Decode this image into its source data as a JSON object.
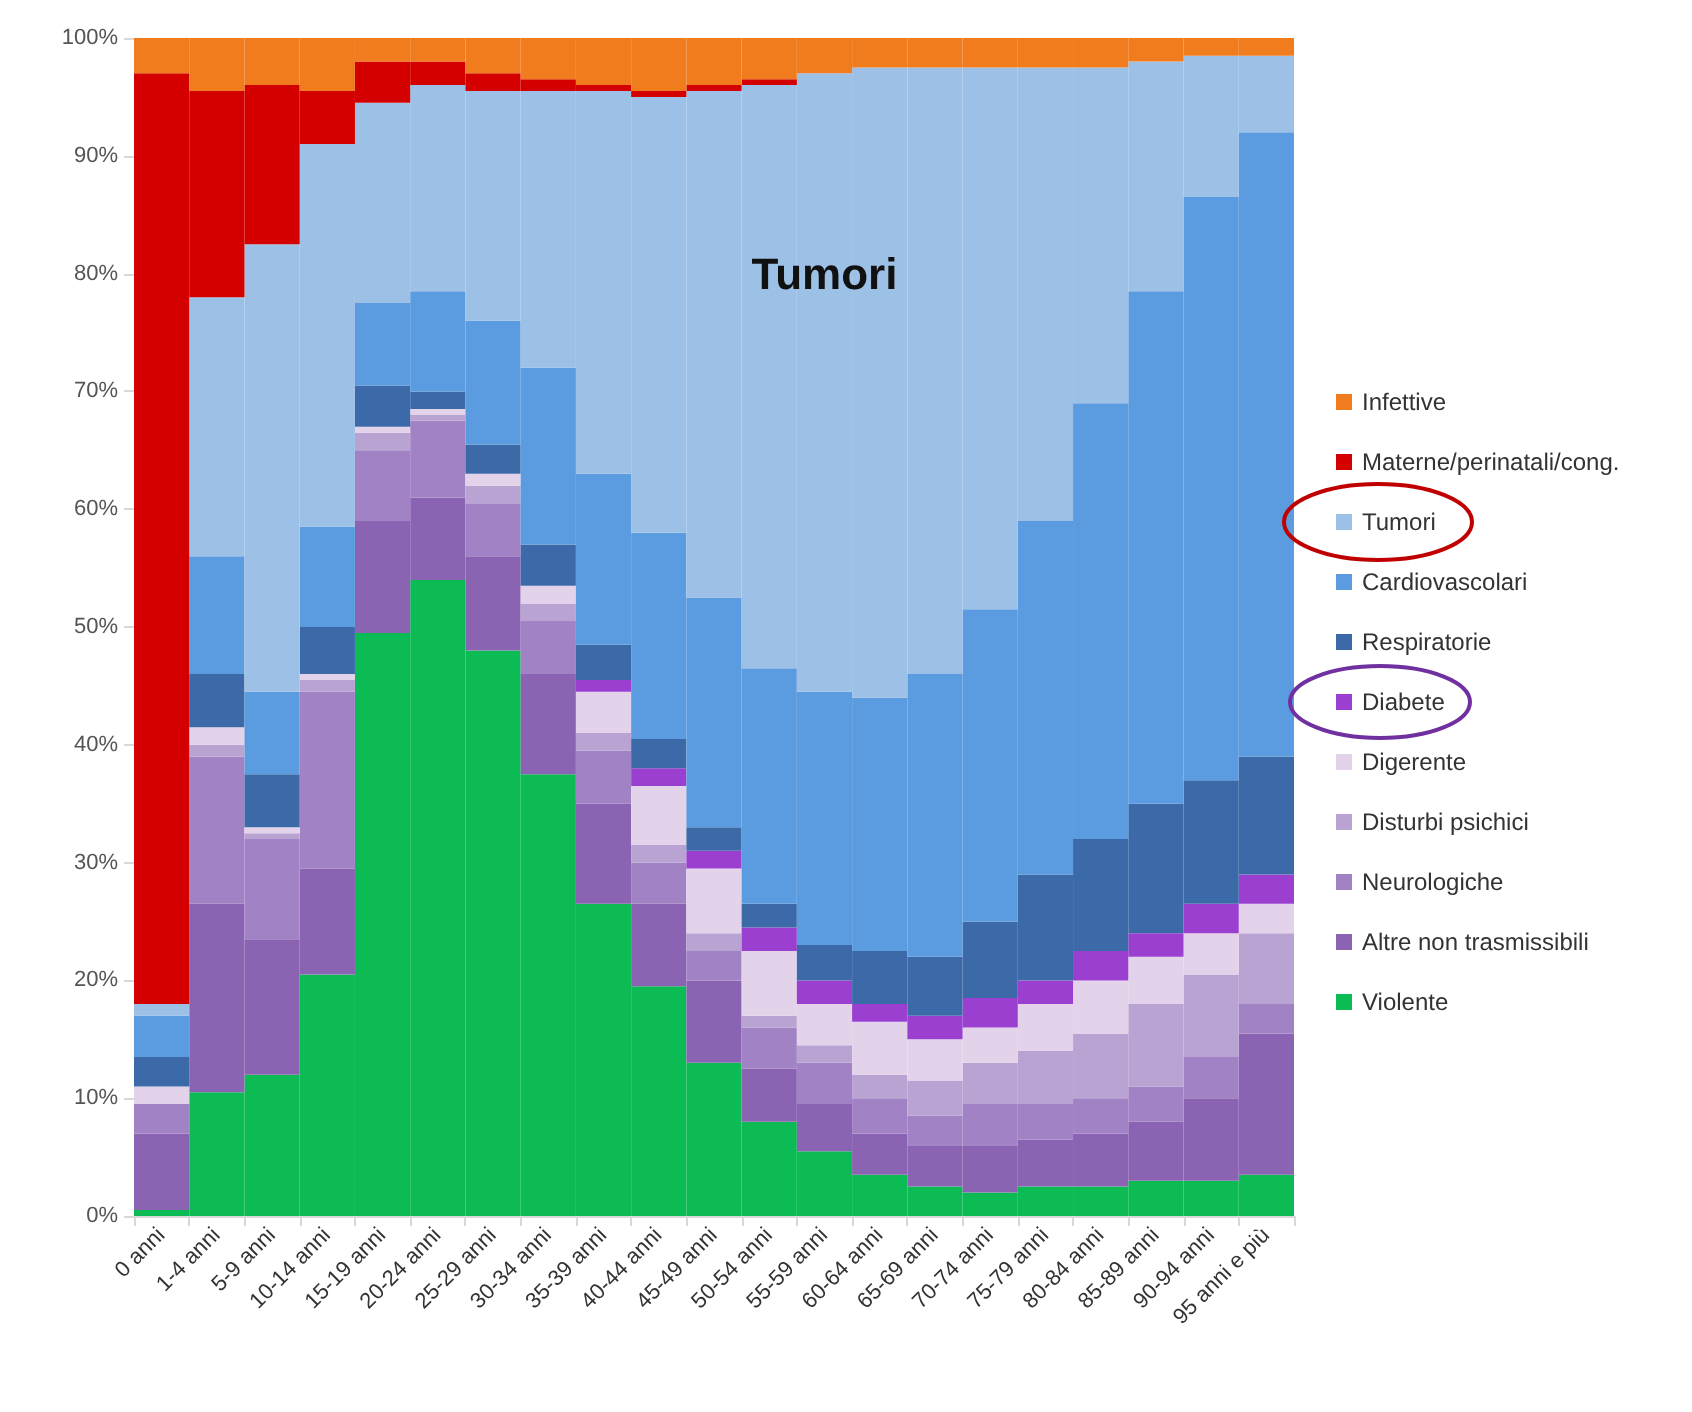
{
  "chart_data": {
    "type": "bar",
    "stacked": true,
    "legend": "right",
    "grid": false,
    "categories": [
      "0 anni",
      "1-4 anni",
      "5-9 anni",
      "10-14 anni",
      "15-19 anni",
      "20-24 anni",
      "25-29 anni",
      "30-34 anni",
      "35-39 anni",
      "40-44 anni",
      "45-49 anni",
      "50-54 anni",
      "55-59 anni",
      "60-64 anni",
      "65-69 anni",
      "70-74 anni",
      "75-79 anni",
      "80-84 anni",
      "85-89 anni",
      "90-94 anni",
      "95 anni e più"
    ],
    "ylim": [
      0,
      100
    ],
    "yticks": [
      {
        "value": 0,
        "label": "0%"
      },
      {
        "value": 10,
        "label": "10%"
      },
      {
        "value": 20,
        "label": "20%"
      },
      {
        "value": 30,
        "label": "30%"
      },
      {
        "value": 40,
        "label": "40%"
      },
      {
        "value": 50,
        "label": "50%"
      },
      {
        "value": 60,
        "label": "60%"
      },
      {
        "value": 70,
        "label": "70%"
      },
      {
        "value": 80,
        "label": "80%"
      },
      {
        "value": 90,
        "label": "90%"
      },
      {
        "value": 100,
        "label": "100%"
      }
    ],
    "annotations": [
      {
        "text": "Tumori",
        "x": "55-59 anni",
        "y": 80
      }
    ],
    "series": [
      {
        "name": "Violente",
        "color": "#0dbb55",
        "values": [
          0.5,
          10.5,
          12,
          20.5,
          49.5,
          54,
          48,
          37.5,
          26.5,
          19.5,
          13,
          8,
          5.5,
          3.5,
          2.5,
          2,
          2.5,
          2.5,
          3,
          3,
          3.5
        ]
      },
      {
        "name": "Altre non trasmissibili",
        "color": "#8a63b3",
        "values": [
          6.5,
          16,
          11.5,
          9,
          9.5,
          7,
          8,
          8.5,
          8.5,
          7,
          7,
          4.5,
          4,
          3.5,
          3.5,
          4,
          4,
          4.5,
          5,
          7,
          12
        ]
      },
      {
        "name": "Neurologiche",
        "color": "#a182c4",
        "values": [
          2.5,
          12.5,
          8.5,
          15,
          6,
          6.5,
          4.5,
          4.5,
          4.5,
          3.5,
          2.5,
          3.5,
          3.5,
          3,
          2.5,
          3.5,
          3,
          3,
          3,
          3.5,
          2.5
        ]
      },
      {
        "name": "Disturbi psichici",
        "color": "#b9a3d3",
        "values": [
          0,
          1,
          0.5,
          1,
          1.5,
          0.5,
          1.5,
          1.5,
          1.5,
          1.5,
          1.5,
          1,
          1.5,
          2,
          3,
          3.5,
          4.5,
          5.5,
          7,
          7,
          6
        ]
      },
      {
        "name": "Digerente",
        "color": "#e2d3ea",
        "values": [
          1.5,
          1.5,
          0.5,
          0.5,
          0.5,
          0.5,
          1,
          1.5,
          3.5,
          5,
          5.5,
          5.5,
          3.5,
          4.5,
          3.5,
          3,
          4,
          4.5,
          4,
          3.5,
          2.5
        ]
      },
      {
        "name": "Diabete",
        "color": "#9a3fd0",
        "values": [
          0,
          0,
          0,
          0,
          0,
          0,
          0,
          0,
          1,
          1.5,
          1.5,
          2,
          2,
          1.5,
          2,
          2.5,
          2,
          2.5,
          2,
          2.5,
          2.5
        ]
      },
      {
        "name": "Respiratorie",
        "color": "#3c6aa8",
        "values": [
          2.5,
          4.5,
          4.5,
          4,
          3.5,
          1.5,
          2.5,
          3.5,
          3,
          2.5,
          2,
          2,
          3,
          4.5,
          5,
          6.5,
          9,
          9.5,
          11,
          10.5,
          10
        ]
      },
      {
        "name": "Cardiovascolari",
        "color": "#5b9bdf",
        "values": [
          3.5,
          10,
          7,
          8.5,
          7,
          8.5,
          10.5,
          15,
          14.5,
          17.5,
          19.5,
          20,
          21.5,
          21.5,
          24,
          26.5,
          30,
          37,
          43.5,
          49.5,
          53
        ]
      },
      {
        "name": "Tumori",
        "color": "#9dc0e6",
        "values": [
          1,
          22,
          38,
          32.5,
          17,
          17.5,
          19.5,
          23.5,
          32.5,
          37,
          43,
          49.5,
          52.5,
          53.5,
          51.5,
          46,
          38.5,
          28.5,
          19.5,
          12,
          6.5
        ]
      },
      {
        "name": "Materne/perinatali/cong.",
        "color": "#d40000",
        "values": [
          79,
          17.5,
          13.5,
          4.5,
          3.5,
          2,
          1.5,
          1,
          0.5,
          0.5,
          0.5,
          0.5,
          0,
          0,
          0,
          0,
          0,
          0,
          0,
          0,
          0
        ]
      },
      {
        "name": "Infettive",
        "color": "#f07c1e",
        "values": [
          3,
          4.5,
          4,
          4.5,
          2,
          2,
          3,
          3.5,
          4,
          4.5,
          4,
          3.5,
          3,
          2.5,
          2.5,
          2.5,
          2.5,
          2.5,
          2,
          1.5,
          1.5
        ]
      }
    ]
  }
}
